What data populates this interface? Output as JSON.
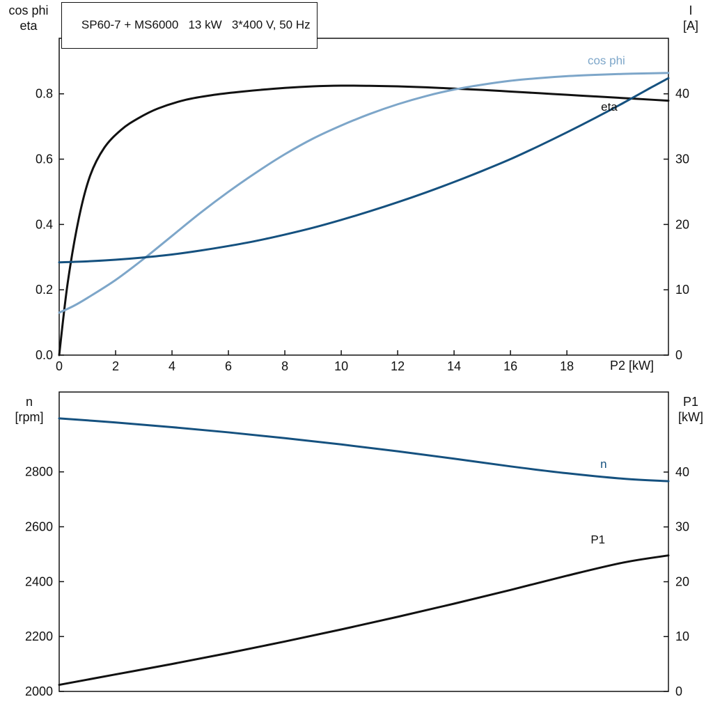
{
  "page": {
    "background": "#ffffff"
  },
  "chart_data": [
    {
      "type": "line",
      "title": "SP60-7 + MS6000   13 kW   3*400 V, 50 Hz",
      "grid": false,
      "legend_position": "inline-labels",
      "x_axis": {
        "label": "P2 [kW]",
        "range": [
          0,
          21.6
        ],
        "ticks": [
          0,
          2,
          4,
          6,
          8,
          10,
          12,
          14,
          16,
          18
        ],
        "tick_labels": [
          "0",
          "2",
          "4",
          "6",
          "8",
          "10",
          "12",
          "14",
          "16",
          "18"
        ]
      },
      "y_left": {
        "label_lines": [
          "cos phi",
          "eta"
        ],
        "range": [
          0,
          0.97
        ],
        "ticks": [
          0,
          0.2,
          0.4,
          0.6,
          0.8
        ],
        "tick_labels": [
          "0.0",
          "0.2",
          "0.4",
          "0.6",
          "0.8"
        ]
      },
      "y_right": {
        "label_lines": [
          "I",
          "[A]"
        ],
        "range": [
          0,
          48.5
        ],
        "ticks": [
          0,
          10,
          20,
          30,
          40
        ],
        "tick_labels": [
          "0",
          "10",
          "20",
          "30",
          "40"
        ]
      },
      "series": [
        {
          "name": "eta",
          "color": "#111111",
          "axis": "left",
          "x": [
            0,
            0.3,
            0.7,
            1.1,
            1.6,
            2.2,
            2.8,
            3.5,
            4.5,
            5.5,
            6.5,
            8,
            9,
            10,
            11,
            12,
            13,
            14,
            15,
            16,
            17,
            18,
            19,
            20,
            21,
            21.6
          ],
          "y": [
            0,
            0.22,
            0.42,
            0.55,
            0.635,
            0.69,
            0.725,
            0.755,
            0.782,
            0.797,
            0.807,
            0.818,
            0.823,
            0.825,
            0.8245,
            0.823,
            0.82,
            0.816,
            0.812,
            0.807,
            0.802,
            0.797,
            0.792,
            0.787,
            0.782,
            0.779
          ],
          "label": {
            "text": "eta",
            "x": 19.5,
            "y": 0.748
          }
        },
        {
          "name": "cos phi",
          "color": "#7da6c9",
          "axis": "left",
          "x": [
            0,
            0.5,
            1,
            2,
            3,
            4,
            5,
            6,
            7,
            8,
            9,
            10,
            11,
            12,
            13,
            14,
            15,
            16,
            17,
            18,
            19,
            20,
            21,
            21.6
          ],
          "y": [
            0.13,
            0.15,
            0.175,
            0.23,
            0.295,
            0.365,
            0.435,
            0.5,
            0.56,
            0.615,
            0.663,
            0.703,
            0.738,
            0.768,
            0.793,
            0.813,
            0.828,
            0.84,
            0.848,
            0.854,
            0.858,
            0.861,
            0.863,
            0.864
          ],
          "label": {
            "text": "cos phi",
            "x": 19.4,
            "y": 0.89
          }
        },
        {
          "name": "I",
          "color": "#15517f",
          "axis": "right",
          "x": [
            0,
            1,
            2,
            3,
            4,
            5,
            6,
            7,
            8,
            9,
            10,
            11,
            12,
            13,
            14,
            15,
            16,
            17,
            18,
            19,
            20,
            21,
            21.6
          ],
          "y": [
            14.2,
            14.35,
            14.6,
            14.95,
            15.4,
            16,
            16.7,
            17.5,
            18.45,
            19.5,
            20.7,
            22,
            23.4,
            24.9,
            26.5,
            28.2,
            30,
            32,
            34.1,
            36.3,
            38.6,
            41,
            42.4
          ]
        }
      ]
    },
    {
      "type": "line",
      "title": "",
      "grid": false,
      "legend_position": "inline-labels",
      "x_axis": {
        "label": "",
        "range": [
          0,
          21.6
        ],
        "ticks": [],
        "tick_labels": []
      },
      "y_left": {
        "label_lines": [
          "n",
          "[rpm]"
        ],
        "range": [
          2000,
          3091
        ],
        "ticks": [
          2000,
          2200,
          2400,
          2600,
          2800
        ],
        "tick_labels": [
          "2000",
          "2200",
          "2400",
          "2600",
          "2800"
        ]
      },
      "y_right": {
        "label_lines": [
          "P1",
          "[kW]"
        ],
        "range": [
          0,
          54.6
        ],
        "ticks": [
          0,
          10,
          20,
          30,
          40
        ],
        "tick_labels": [
          "0",
          "10",
          "20",
          "30",
          "40"
        ]
      },
      "series": [
        {
          "name": "n",
          "color": "#15517f",
          "axis": "left",
          "x": [
            0,
            2,
            4,
            6,
            8,
            10,
            12,
            14,
            16,
            18,
            20,
            21.6
          ],
          "y": [
            2995,
            2980,
            2963,
            2944,
            2923,
            2900,
            2875,
            2848,
            2820,
            2795,
            2775,
            2766
          ],
          "label": {
            "text": "n",
            "x": 19.3,
            "y": 2815
          }
        },
        {
          "name": "P1",
          "color": "#111111",
          "axis": "right",
          "x": [
            0,
            2,
            4,
            6,
            8,
            10,
            12,
            14,
            16,
            18,
            20,
            21.6
          ],
          "y": [
            1.2,
            3.1,
            5,
            7,
            9.1,
            11.3,
            13.6,
            16,
            18.5,
            21.1,
            23.5,
            24.8
          ],
          "label": {
            "text": "P1",
            "x": 19.1,
            "y": 27
          }
        }
      ]
    }
  ]
}
